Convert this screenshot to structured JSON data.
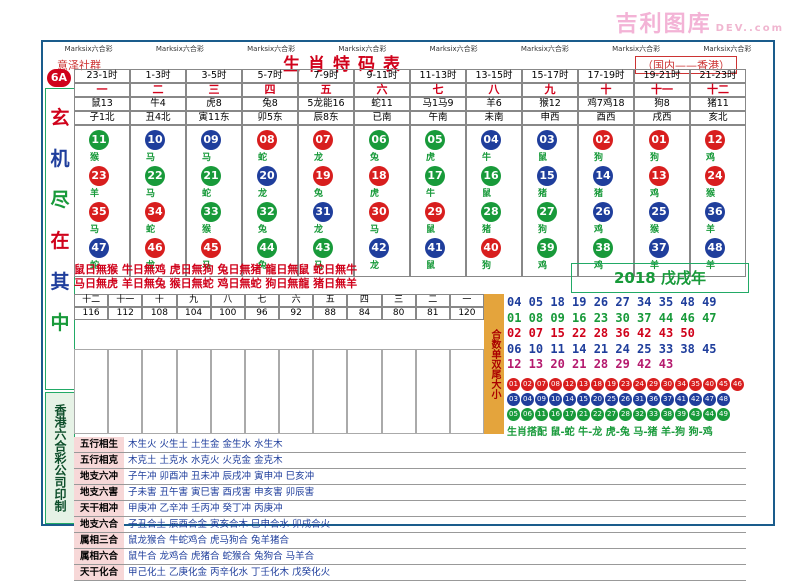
{
  "watermark": {
    "title": "吉利图库",
    "site": "DEV..com"
  },
  "header": {
    "title": "生肖特码表",
    "left_note": "意泽社群",
    "right_note": "（国内——香港）",
    "tag": "6A",
    "brand": "Marksix六合彩"
  },
  "side": {
    "left_chars": [
      "玄",
      "机",
      "尽",
      "在",
      "其",
      "中"
    ],
    "printer": "香港六合彩公司印制"
  },
  "time_row": [
    "23-1时",
    "1-3时",
    "3-5时",
    "5-7时",
    "7-9时",
    "9-11时",
    "11-13时",
    "13-15时",
    "15-17时",
    "17-19时",
    "19-21时",
    "21-23时"
  ],
  "num_row": [
    "一",
    "二",
    "三",
    "四",
    "五",
    "六",
    "七",
    "八",
    "九",
    "十",
    "十一",
    "十二"
  ],
  "branch_row": [
    "鼠13",
    "牛4",
    "虎8",
    "兔8",
    "5龙能16",
    "蛇11",
    "马1马9",
    "羊6",
    "猴12",
    "鸡7鸡18",
    "狗8",
    "猪11"
  ],
  "dir_row": [
    "子1北",
    "丑4北",
    "寅11东",
    "卯5东",
    "辰8东",
    "已南",
    "午南",
    "未南",
    "申西",
    "酉西",
    "戌西",
    "亥北"
  ],
  "columns": [
    {
      "balls": [
        [
          "11",
          "g"
        ],
        [
          "23",
          "r"
        ],
        [
          "35",
          "r"
        ],
        [
          "47",
          "b"
        ]
      ],
      "animals": [
        "猴",
        "羊",
        "马",
        "蛇"
      ]
    },
    {
      "balls": [
        [
          "10",
          "b"
        ],
        [
          "22",
          "g"
        ],
        [
          "34",
          "r"
        ],
        [
          "46",
          "r"
        ]
      ],
      "animals": [
        "马",
        "马",
        "蛇",
        "龙"
      ]
    },
    {
      "balls": [
        [
          "09",
          "b"
        ],
        [
          "21",
          "g"
        ],
        [
          "33",
          "g"
        ],
        [
          "45",
          "r"
        ]
      ],
      "animals": [
        "马",
        "蛇",
        "猴",
        "马"
      ]
    },
    {
      "balls": [
        [
          "08",
          "r"
        ],
        [
          "20",
          "b"
        ],
        [
          "32",
          "g"
        ],
        [
          "44",
          "g"
        ]
      ],
      "animals": [
        "蛇",
        "龙",
        "兔",
        "兔"
      ]
    },
    {
      "balls": [
        [
          "07",
          "r"
        ],
        [
          "19",
          "r"
        ],
        [
          "31",
          "b"
        ],
        [
          "43",
          "g"
        ]
      ],
      "animals": [
        "龙",
        "兔",
        "龙",
        "马"
      ]
    },
    {
      "balls": [
        [
          "06",
          "g"
        ],
        [
          "18",
          "r"
        ],
        [
          "30",
          "r"
        ],
        [
          "42",
          "b"
        ]
      ],
      "animals": [
        "兔",
        "虎",
        "马",
        "龙"
      ]
    },
    {
      "balls": [
        [
          "05",
          "g"
        ],
        [
          "17",
          "g"
        ],
        [
          "29",
          "r"
        ],
        [
          "41",
          "b"
        ]
      ],
      "animals": [
        "虎",
        "牛",
        "鼠",
        "鼠"
      ]
    },
    {
      "balls": [
        [
          "04",
          "b"
        ],
        [
          "16",
          "g"
        ],
        [
          "28",
          "g"
        ],
        [
          "40",
          "r"
        ]
      ],
      "animals": [
        "牛",
        "鼠",
        "猪",
        "狗"
      ]
    },
    {
      "balls": [
        [
          "03",
          "b"
        ],
        [
          "15",
          "b"
        ],
        [
          "27",
          "g"
        ],
        [
          "39",
          "g"
        ]
      ],
      "animals": [
        "鼠",
        "猪",
        "狗",
        "鸡"
      ]
    },
    {
      "balls": [
        [
          "02",
          "r"
        ],
        [
          "14",
          "b"
        ],
        [
          "26",
          "b"
        ],
        [
          "38",
          "g"
        ]
      ],
      "animals": [
        "狗",
        "猪",
        "鸡",
        "鸡"
      ]
    },
    {
      "balls": [
        [
          "01",
          "r"
        ],
        [
          "13",
          "r"
        ],
        [
          "25",
          "b"
        ],
        [
          "37",
          "b"
        ]
      ],
      "animals": [
        "狗",
        "鸡",
        "猴",
        "羊"
      ]
    },
    {
      "balls": [
        [
          "12",
          "r"
        ],
        [
          "24",
          "r"
        ],
        [
          "36",
          "b"
        ],
        [
          "48",
          "b"
        ]
      ],
      "animals": [
        "鸡",
        "猴",
        "羊",
        "羊"
      ]
    }
  ],
  "zodiac_line1": "鼠日無猴 牛日無鸡 虎日無狗 兔日無猪 龍日無鼠 蛇日無牛",
  "zodiac_line2": "马日無虎 羊日無兔 猴日無蛇 鸡日無蛇 狗日無龍 猪日無羊",
  "year_label": "2018 戊戌年",
  "num_table": {
    "row1": [
      "十二",
      "十一",
      "十",
      "九",
      "八",
      "七",
      "六",
      "五",
      "四",
      "三",
      "二",
      "一"
    ],
    "row2": [
      "116",
      "112",
      "108",
      "104",
      "100",
      "96",
      "92",
      "88",
      "84",
      "80",
      "81",
      "120"
    ]
  },
  "ganshu_label": "合数单双尾大小",
  "number_lines": [
    "04 05 18 19 26 27 34 35 48 49",
    "01 08 09 16 23 30 37 44 46 47",
    "02 07 15 22 28 36 42 43 50",
    "06 10 11 14 21 24 25 33 38 45",
    "12 13 20 21 28 29 42 43"
  ],
  "small_balls": [
    [
      "01",
      "02",
      "07",
      "08",
      "12",
      "13",
      "18",
      "19",
      "23",
      "24",
      "29",
      "30",
      "34",
      "35",
      "40",
      "45",
      "46"
    ],
    [
      "03",
      "04",
      "09",
      "10",
      "14",
      "15",
      "20",
      "25",
      "26",
      "31",
      "36",
      "37",
      "41",
      "42",
      "47",
      "48"
    ],
    [
      "05",
      "06",
      "11",
      "16",
      "17",
      "21",
      "22",
      "27",
      "28",
      "32",
      "33",
      "38",
      "39",
      "43",
      "44",
      "49"
    ]
  ],
  "pair_text": "生肖搭配 鼠-蛇 牛-龙 虎-兔 马-猪 羊-狗 狗-鸡",
  "bottom": [
    {
      "label": "五行相生",
      "value": "木生火 火生土 土生金 金生水 水生木"
    },
    {
      "label": "五行相克",
      "value": "木克土 土克水 水克火 火克金 金克木"
    },
    {
      "label": "地支六冲",
      "value": "子午冲 卯酉冲 丑未冲 辰戌冲 寅申冲 巳亥冲"
    },
    {
      "label": "地支六害",
      "value": "子未害 丑午害 寅巳害 酉戌害 申亥害 卯辰害"
    },
    {
      "label": "天干相冲",
      "value": "甲庚冲 乙辛冲 壬丙冲 癸丁冲 丙庚冲"
    },
    {
      "label": "地支六合",
      "value": "子丑合土 辰酉合金 寅亥合木 巳申合水 卯戌合火"
    },
    {
      "label": "属相三合",
      "value": "鼠龙猴合 牛蛇鸡合 虎马狗合 兔羊猪合"
    },
    {
      "label": "属相六合",
      "value": "鼠牛合 龙鸡合 虎猪合 蛇猴合 兔狗合 马羊合"
    },
    {
      "label": "天干化合",
      "value": "甲己化土 乙庚化金 丙辛化水 丁壬化木 戊癸化火"
    }
  ]
}
